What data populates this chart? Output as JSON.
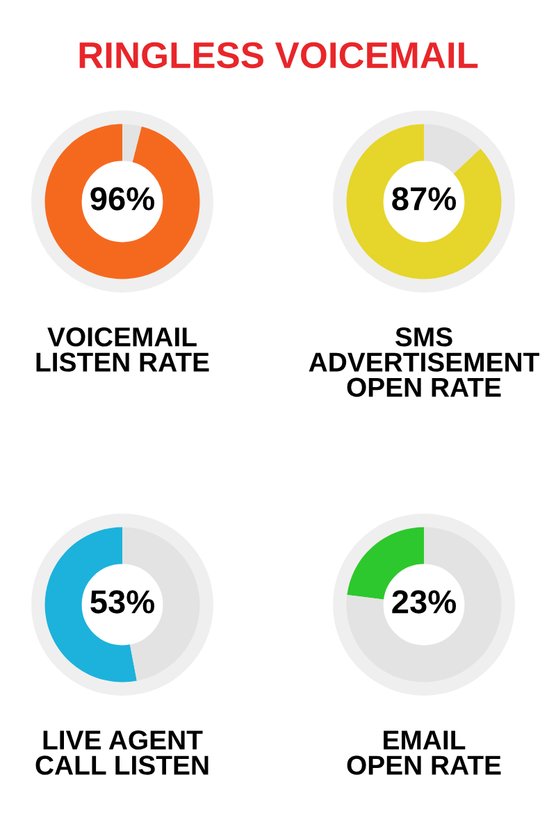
{
  "chart_data": [
    {
      "type": "other",
      "title": "RINGLESS VOICEMAIL",
      "color": "#e8262a"
    },
    {
      "type": "donut",
      "title": "VOICEMAIL\nLISTEN RATE",
      "categories": [
        null,
        null
      ],
      "values": [
        96,
        4
      ],
      "colors": [
        "#f5691f",
        "#e3e3e3"
      ],
      "value_labels": [
        "96%",
        null
      ]
    },
    {
      "type": "donut",
      "title": "SMS\nADVERTISEMENT\nOPEN RATE",
      "categories": [
        null,
        null
      ],
      "values": [
        87,
        13
      ],
      "colors": [
        "#e6d52a",
        "#e3e3e3"
      ],
      "value_labels": [
        "87%",
        null
      ]
    },
    {
      "type": "donut",
      "title": "LIVE AGENT\nCALL LISTEN",
      "categories": [
        null,
        null
      ],
      "values": [
        53,
        47
      ],
      "colors": [
        "#1cb2dc",
        "#e3e3e3"
      ],
      "value_labels": [
        "53%",
        null
      ]
    },
    {
      "type": "donut",
      "title": "EMAIL\nOPEN RATE",
      "categories": [
        null,
        null
      ],
      "values": [
        23,
        77
      ],
      "colors": [
        "#2dc82d",
        "#e3e3e3"
      ],
      "value_labels": [
        "23%",
        null
      ]
    }
  ]
}
